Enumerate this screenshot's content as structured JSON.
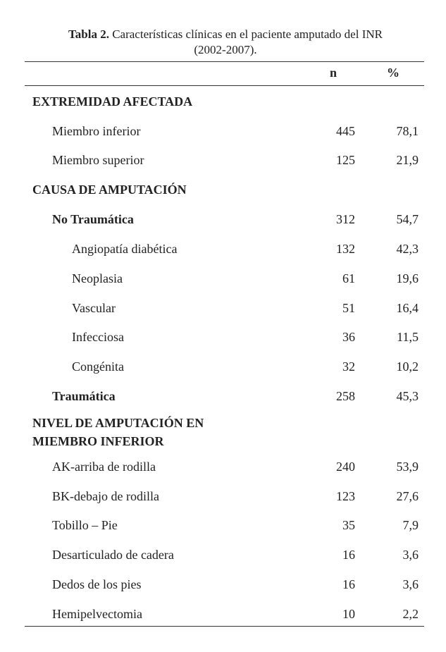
{
  "caption": {
    "label": "Tabla 2.",
    "title": " Características clínicas en el paciente amputado del INR",
    "years": "(2002-2007)."
  },
  "columns": {
    "n": "n",
    "pct": "%"
  },
  "sections": [
    {
      "title": "EXTREMIDAD AFECTADA",
      "rows": [
        {
          "label": "Miembro inferior",
          "n": "445",
          "pct": "78,1"
        },
        {
          "label": "Miembro superior",
          "n": "125",
          "pct": "21,9"
        }
      ]
    },
    {
      "title": "CAUSA DE AMPUTACIÓN",
      "rows": [
        {
          "label": "No Traumática",
          "n": "312",
          "pct": "54,7"
        },
        {
          "label": "Angiopatía diabética",
          "n": "132",
          "pct": "42,3"
        },
        {
          "label": "Neoplasia",
          "n": "61",
          "pct": "19,6"
        },
        {
          "label": "Vascular",
          "n": "51",
          "pct": "16,4"
        },
        {
          "label": "Infecciosa",
          "n": "36",
          "pct": "11,5"
        },
        {
          "label": "Congénita",
          "n": "32",
          "pct": "10,2"
        },
        {
          "label": "Traumática",
          "n": "258",
          "pct": "45,3"
        }
      ]
    },
    {
      "title_line1": "NIVEL DE AMPUTACIÓN EN",
      "title_line2": "MIEMBRO INFERIOR",
      "rows": [
        {
          "label": "AK-arriba de rodilla",
          "n": "240",
          "pct": "53,9"
        },
        {
          "label": "BK-debajo de rodilla",
          "n": "123",
          "pct": "27,6"
        },
        {
          "label": "Tobillo – Pie",
          "n": "35",
          "pct": "7,9"
        },
        {
          "label": "Desarticulado de cadera",
          "n": "16",
          "pct": "3,6"
        },
        {
          "label": "Dedos de los pies",
          "n": "16",
          "pct": "3,6"
        },
        {
          "label": "Hemipelvectomia",
          "n": "10",
          "pct": "2,2"
        }
      ]
    }
  ]
}
